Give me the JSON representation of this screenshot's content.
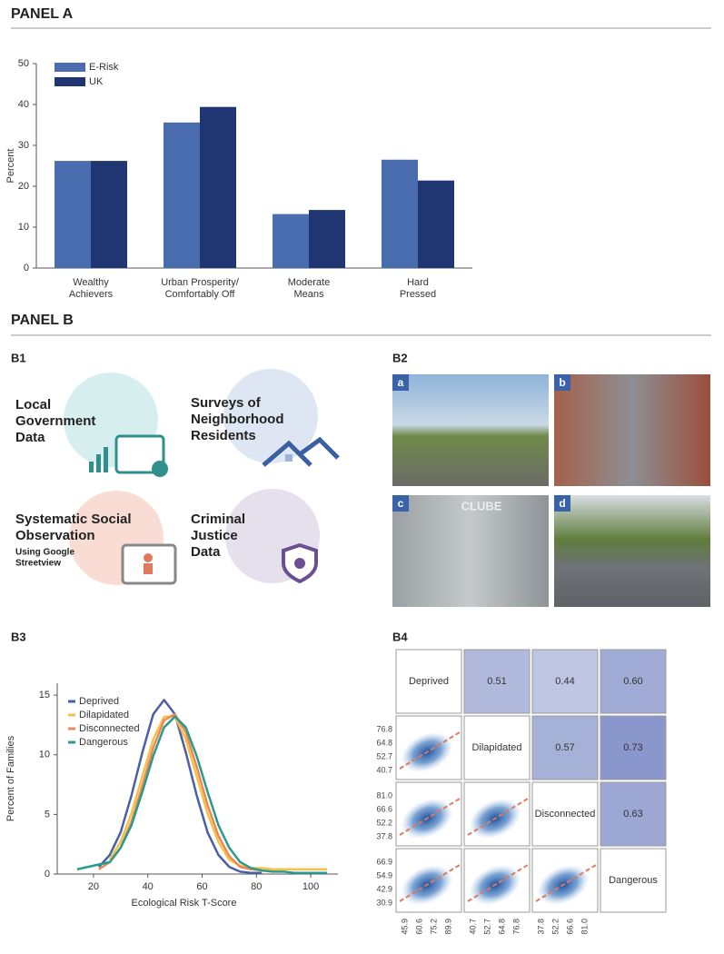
{
  "panel_a": {
    "title": "PANEL A"
  },
  "panel_b": {
    "title": "PANEL B",
    "b1": {
      "label": "B1",
      "items": [
        {
          "lines": [
            "Local",
            "Government",
            "Data"
          ]
        },
        {
          "lines": [
            "Surveys of",
            "Neighborhood",
            "Residents"
          ]
        },
        {
          "lines": [
            "Systematic Social",
            "Observation"
          ],
          "sub": [
            "Using Google",
            "Streetview"
          ]
        },
        {
          "lines": [
            "Criminal",
            "Justice",
            "Data"
          ]
        }
      ]
    },
    "b2": {
      "label": "B2",
      "photos": [
        "a",
        "b",
        "c",
        "d"
      ],
      "sign": "CLUBE"
    },
    "b3": {
      "label": "B3"
    },
    "b4": {
      "label": "B4",
      "variables": [
        "Deprived",
        "Dilapidated",
        "Disconnected",
        "Dangerous"
      ],
      "correlations": [
        [
          "0.51",
          "0.44",
          "0.60"
        ],
        [
          "0.57",
          "0.73"
        ],
        [
          "0.63"
        ]
      ],
      "ticks": [
        [
          "45.9",
          "60.6",
          "75.2",
          "89.9"
        ],
        [
          "40.7",
          "52.7",
          "64.8",
          "76.8"
        ],
        [
          "37.8",
          "52.2",
          "66.6",
          "81.0"
        ],
        [
          "30.9",
          "42.9",
          "54.9",
          "66.9"
        ]
      ]
    }
  },
  "chart_data": [
    {
      "type": "bar",
      "ylabel": "Percent",
      "categories": [
        "Wealthy\nAchievers",
        "Urban Prosperity/\nComfortably Off",
        "Moderate\nMeans",
        "Hard\nPressed"
      ],
      "series": [
        {
          "name": "E-Risk",
          "color": "#4a6db0",
          "values": [
            26.2,
            35.6,
            13.2,
            26.5
          ]
        },
        {
          "name": "UK",
          "color": "#1f3672",
          "values": [
            26.2,
            39.4,
            14.2,
            21.4
          ]
        }
      ],
      "ylim": [
        0,
        50
      ],
      "yticks": [
        0,
        10,
        20,
        30,
        40,
        50
      ],
      "legend": "top-left",
      "grid": false
    },
    {
      "type": "line",
      "xlabel": "Ecological Risk T-Score",
      "ylabel": "Percent of Families",
      "x": [
        14,
        18,
        22,
        26,
        30,
        34,
        38,
        42,
        46,
        50,
        54,
        58,
        62,
        66,
        70,
        74,
        78,
        82,
        86,
        90,
        94,
        98,
        102,
        106
      ],
      "series": [
        {
          "name": "Deprived",
          "color": "#4a5fa8",
          "values": [
            null,
            null,
            0.6,
            1.6,
            3.5,
            6.6,
            10.2,
            13.4,
            14.6,
            13.4,
            10.2,
            6.6,
            3.5,
            1.6,
            0.6,
            0.2,
            0.1,
            0.1,
            null,
            null,
            null,
            null,
            null,
            null
          ]
        },
        {
          "name": "Dilapidated",
          "color": "#f4c246",
          "values": [
            null,
            null,
            null,
            1.2,
            2.7,
            5.1,
            8.2,
            11.3,
            13.2,
            13.2,
            11.3,
            8.2,
            5.1,
            2.7,
            1.2,
            0.7,
            0.5,
            0.5,
            0.4,
            0.4,
            0.4,
            0.4,
            0.4,
            0.4
          ]
        },
        {
          "name": "Disconnected",
          "color": "#ee8757",
          "values": [
            null,
            null,
            0.4,
            1.0,
            2.2,
            4.4,
            7.4,
            10.6,
            12.9,
            13.4,
            11.9,
            9.0,
            5.8,
            3.2,
            1.5,
            0.6,
            0.4,
            0.3,
            0.2,
            null,
            null,
            null,
            null,
            null
          ]
        },
        {
          "name": "Dangerous",
          "color": "#2a9a8c",
          "values": [
            0.4,
            0.6,
            0.8,
            1.0,
            2.2,
            4.1,
            6.9,
            9.9,
            12.3,
            13.2,
            12.3,
            9.9,
            6.9,
            4.1,
            2.2,
            1.0,
            0.5,
            0.3,
            0.2,
            0.2,
            0.1,
            0.1,
            0.1,
            0.1
          ]
        }
      ],
      "xlim": [
        10,
        110
      ],
      "xticks": [
        20,
        40,
        60,
        80,
        100
      ],
      "ylim": [
        0,
        16
      ],
      "yticks": [
        0,
        5,
        10,
        15
      ],
      "legend": "top-left",
      "grid": false
    }
  ]
}
